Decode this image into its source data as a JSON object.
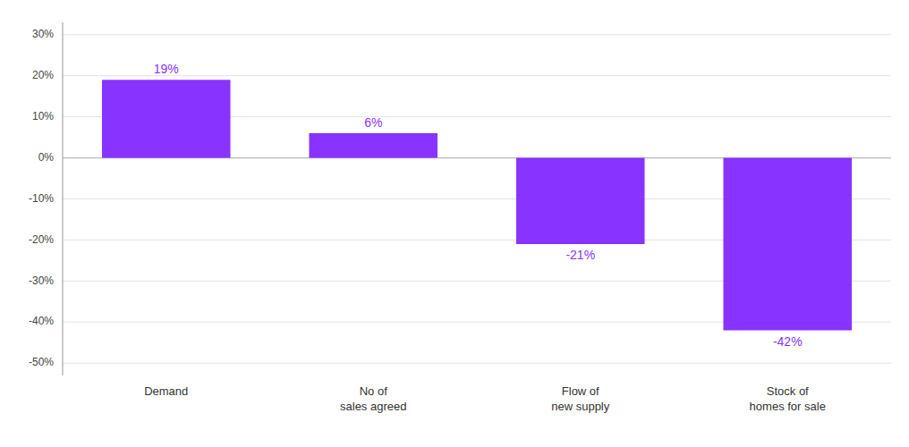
{
  "chart_data": {
    "type": "bar",
    "categories": [
      "Demand",
      "No of\nsales agreed",
      "Flow of\nnew supply",
      "Stock of\nhomes for sale"
    ],
    "values": [
      19,
      6,
      -21,
      -42
    ],
    "value_labels": [
      "19%",
      "6%",
      "-21%",
      "-42%"
    ],
    "color": "#8833ff",
    "ylim": [
      -53,
      33
    ],
    "yticks": [
      {
        "value": -50,
        "label": "-50%"
      },
      {
        "value": -40,
        "label": "-40%"
      },
      {
        "value": -30,
        "label": "-30%"
      },
      {
        "value": -20,
        "label": "-20%"
      },
      {
        "value": -10,
        "label": "-10%"
      },
      {
        "value": 0,
        "label": "0%"
      },
      {
        "value": 10,
        "label": "10%"
      },
      {
        "value": 20,
        "label": "20%"
      },
      {
        "value": 30,
        "label": "30%"
      }
    ],
    "grid": true,
    "data_labels": true
  }
}
